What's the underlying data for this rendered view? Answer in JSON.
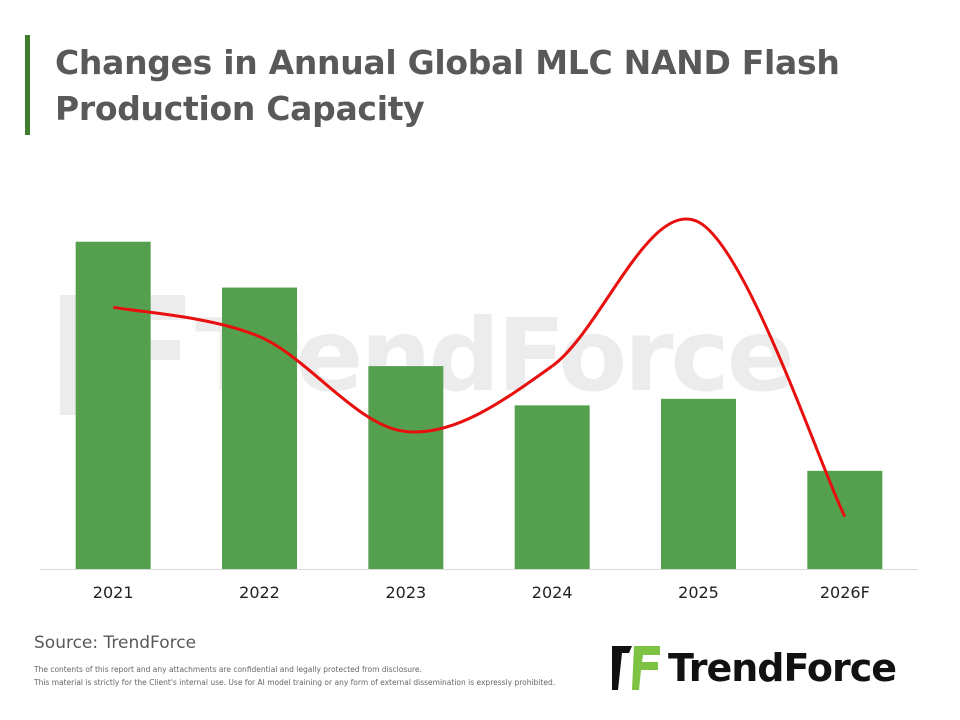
{
  "title": "Changes in Annual Global MLC NAND Flash Production Capacity",
  "source": "Source: TrendForce",
  "disclaimer": [
    "The contents of this report and any attachments are confidential and legally protected from disclosure.",
    "This material is strictly for the Client's internal use. Use for AI model training or any form of external dissemination is expressly prohibited."
  ],
  "logo": {
    "text": "TrendForce",
    "colors": {
      "dark": "#111111",
      "green": "#7dc242"
    }
  },
  "watermark": "TrendForce",
  "colors": {
    "accent": "#3f7d2c",
    "bar": "#55a04f",
    "line": "#e8100e"
  },
  "chart_data": {
    "type": "bar+line",
    "title": "Changes in Annual Global MLC NAND Flash Production Capacity",
    "categories": [
      "2021",
      "2022",
      "2023",
      "2024",
      "2025",
      "2026F"
    ],
    "series": [
      {
        "type": "bar",
        "values": [
          100,
          86,
          62,
          50,
          52,
          30
        ]
      },
      {
        "type": "line",
        "values": [
          80,
          71,
          42,
          62,
          106,
          16
        ]
      }
    ],
    "ylim": [
      0,
      110
    ],
    "y_axis_shown": false,
    "grid": false,
    "legend": "none",
    "xlabel": "",
    "ylabel": ""
  }
}
